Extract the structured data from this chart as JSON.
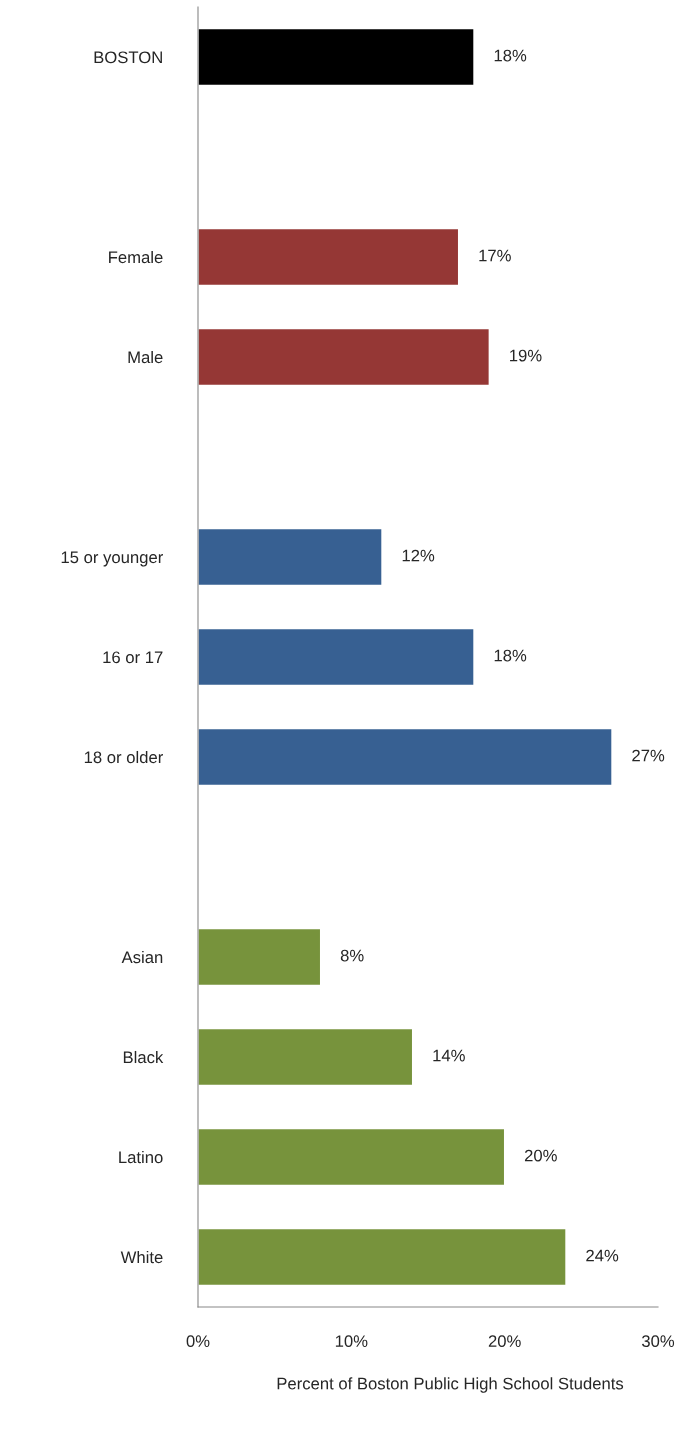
{
  "chart_data": {
    "type": "bar",
    "orientation": "horizontal",
    "xlabel": "Percent of Boston Public High School Students",
    "categories": [
      "BOSTON",
      null,
      "Female",
      "Male",
      null,
      "15 or younger",
      "16 or 17",
      "18 or older",
      null,
      "Asian",
      "Black",
      "Latino",
      "White"
    ],
    "values": [
      18,
      null,
      17,
      19,
      null,
      12,
      18,
      27,
      null,
      8,
      14,
      20,
      24
    ],
    "colors": [
      "#000000",
      null,
      "#953735",
      "#953735",
      null,
      "#376092",
      "#376092",
      "#376092",
      null,
      "#77933c",
      "#77933c",
      "#77933c",
      "#77933c"
    ],
    "value_labels": [
      "18%",
      null,
      "17%",
      "19%",
      null,
      "12%",
      "18%",
      "27%",
      null,
      "8%",
      "14%",
      "20%",
      "24%"
    ],
    "xlim": [
      0,
      30
    ],
    "xticks": [
      {
        "value": 0,
        "label": "0%"
      },
      {
        "value": 10,
        "label": "10%"
      },
      {
        "value": 20,
        "label": "20%"
      },
      {
        "value": 30,
        "label": "30%"
      }
    ],
    "grid": false,
    "legend": false
  }
}
